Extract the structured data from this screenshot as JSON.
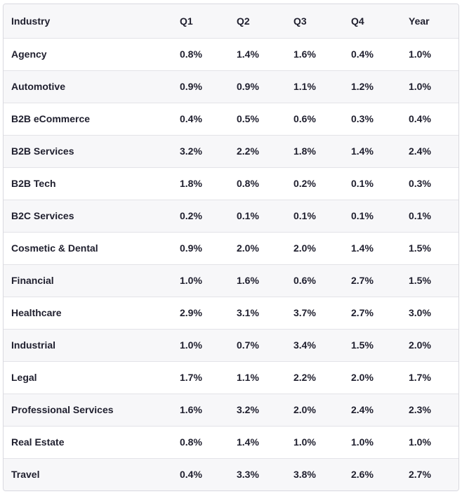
{
  "chart_data": {
    "type": "table",
    "columns": [
      "Industry",
      "Q1",
      "Q2",
      "Q3",
      "Q4",
      "Year"
    ],
    "rows": [
      [
        "Agency",
        "0.8%",
        "1.4%",
        "1.6%",
        "0.4%",
        "1.0%"
      ],
      [
        "Automotive",
        "0.9%",
        "0.9%",
        "1.1%",
        "1.2%",
        "1.0%"
      ],
      [
        "B2B eCommerce",
        "0.4%",
        "0.5%",
        "0.6%",
        "0.3%",
        "0.4%"
      ],
      [
        "B2B Services",
        "3.2%",
        "2.2%",
        "1.8%",
        "1.4%",
        "2.4%"
      ],
      [
        "B2B Tech",
        "1.8%",
        "0.8%",
        "0.2%",
        "0.1%",
        "0.3%"
      ],
      [
        "B2C Services",
        "0.2%",
        "0.1%",
        "0.1%",
        "0.1%",
        "0.1%"
      ],
      [
        "Cosmetic & Dental",
        "0.9%",
        "2.0%",
        "2.0%",
        "1.4%",
        "1.5%"
      ],
      [
        "Financial",
        "1.0%",
        "1.6%",
        "0.6%",
        "2.7%",
        "1.5%"
      ],
      [
        "Healthcare",
        "2.9%",
        "3.1%",
        "3.7%",
        "2.7%",
        "3.0%"
      ],
      [
        "Industrial",
        "1.0%",
        "0.7%",
        "3.4%",
        "1.5%",
        "2.0%"
      ],
      [
        "Legal",
        "1.7%",
        "1.1%",
        "2.2%",
        "2.0%",
        "1.7%"
      ],
      [
        "Professional Services",
        "1.6%",
        "3.2%",
        "2.0%",
        "2.4%",
        "2.3%"
      ],
      [
        "Real Estate",
        "0.8%",
        "1.4%",
        "1.0%",
        "1.0%",
        "1.0%"
      ],
      [
        "Travel",
        "0.4%",
        "3.3%",
        "3.8%",
        "2.6%",
        "2.7%"
      ]
    ]
  }
}
